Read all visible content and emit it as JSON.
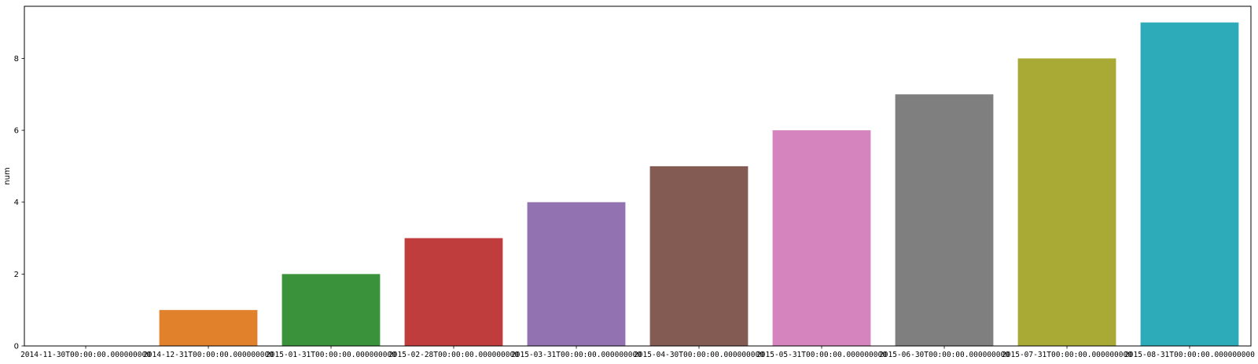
{
  "chart_data": {
    "type": "bar",
    "title": "",
    "xlabel": "",
    "ylabel": "num",
    "ylim": [
      0,
      9.45
    ],
    "yticks": [
      0,
      2,
      4,
      6,
      8
    ],
    "grid": false,
    "categories": [
      "2014-11-30T00:00:00.000000000",
      "2014-12-31T00:00:00.000000000",
      "2015-01-31T00:00:00.000000000",
      "2015-02-28T00:00:00.000000000",
      "2015-03-31T00:00:00.000000000",
      "2015-04-30T00:00:00.000000000",
      "2015-05-31T00:00:00.000000000",
      "2015-06-30T00:00:00.000000000",
      "2015-07-31T00:00:00.000000000",
      "2015-08-31T00:00:00.000000000"
    ],
    "values": [
      0,
      1,
      2,
      3,
      4,
      5,
      6,
      7,
      8,
      9
    ],
    "colors": [
      "#3274a1",
      "#e1812c",
      "#3a923a",
      "#c03d3e",
      "#9372b2",
      "#845b53",
      "#d684bd",
      "#7f7f7f",
      "#a9aa35",
      "#2eabb8"
    ]
  }
}
